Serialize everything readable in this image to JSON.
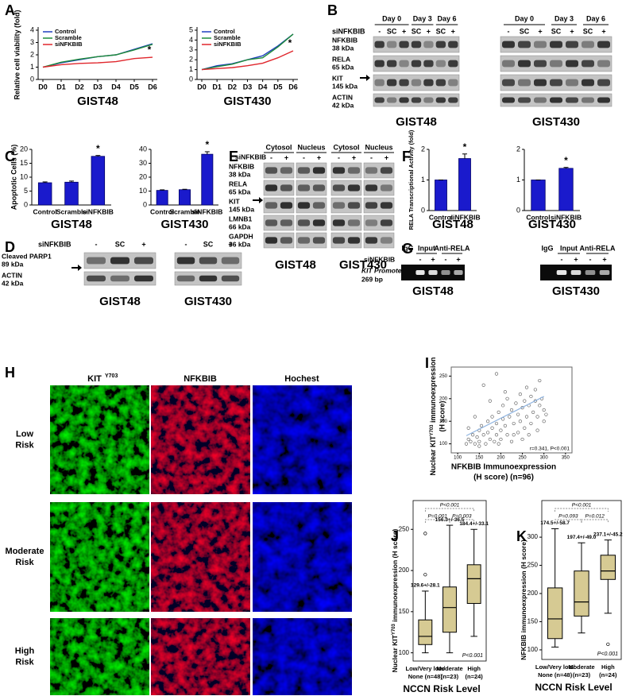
{
  "panel_letters": [
    "A",
    "B",
    "C",
    "D",
    "E",
    "F",
    "G",
    "H",
    "I",
    "J",
    "K"
  ],
  "blot_B": {
    "days": [
      "Day 0",
      "Day 3",
      "Day 6"
    ],
    "treatment": "siNFKBIB",
    "lanes": [
      "-",
      "SC",
      "+",
      "SC",
      "+",
      "SC",
      "+"
    ],
    "rows": [
      [
        "NFKBIB",
        "38 kDa"
      ],
      [
        "RELA",
        "65 kDa"
      ],
      [
        "KIT",
        "145 kDa"
      ],
      [
        "ACTIN",
        "42 kDa"
      ]
    ],
    "cells": [
      "GIST48",
      "GIST430"
    ]
  },
  "blot_D": {
    "treatment": "siNFKBIB",
    "lanes": [
      "-",
      "SC",
      "+"
    ],
    "rows": [
      [
        "Cleaved PARP1",
        "89 kDa"
      ],
      [
        "ACTIN",
        "42 kDa"
      ]
    ],
    "cells": [
      "GIST48",
      "GIST430"
    ]
  },
  "blot_E": {
    "fractions": [
      "Cytosol",
      "Nucleus"
    ],
    "treatment": "siNFKBIB",
    "lanes": [
      "-",
      "+"
    ],
    "rows": [
      [
        "NFKBIB",
        "38 kDa"
      ],
      [
        "RELA",
        "65 kDa"
      ],
      [
        "KIT",
        "145 kDa"
      ],
      [
        "LMNB1",
        "66 kDa"
      ],
      [
        "GAPDH",
        "36 kDa"
      ]
    ],
    "cells": [
      "GIST48",
      "GIST430"
    ]
  },
  "chip_G": {
    "groups": [
      "IgG",
      "Input",
      "Anti-RELA"
    ],
    "treatment": "siNFKBIB",
    "lanes": [
      "-",
      "+",
      "-",
      "+"
    ],
    "row": [
      "KIT Promoter",
      "269 bp"
    ],
    "cells": [
      "GIST48",
      "GIST430"
    ]
  },
  "images_H": {
    "channels": [
      "KIT",
      "NFKBIB",
      "Hochest"
    ],
    "kit_superscript": "Y703",
    "rows": [
      [
        "Low",
        "Risk"
      ],
      [
        "Moderate",
        "Risk"
      ],
      [
        "High",
        "Risk"
      ]
    ]
  },
  "chart_data": [
    {
      "type": "line",
      "x_label": "GIST48",
      "y_label": "Relative cell viability (fold)",
      "categories": [
        "D0",
        "D1",
        "D2",
        "D3",
        "D4",
        "D5",
        "D6"
      ],
      "ylim": [
        0,
        4
      ],
      "yticks": [
        0,
        1,
        2,
        3,
        4
      ],
      "annotation": "*",
      "series": [
        {
          "name": "Control",
          "color": "#1f3fbf",
          "values": [
            1,
            1.35,
            1.6,
            1.85,
            2.0,
            2.45,
            2.9
          ]
        },
        {
          "name": "Scramble",
          "color": "#1e8a3a",
          "values": [
            1,
            1.4,
            1.65,
            1.85,
            2.0,
            2.4,
            2.85
          ]
        },
        {
          "name": "siNFKBIB",
          "color": "#e0262c",
          "values": [
            1,
            1.2,
            1.3,
            1.35,
            1.45,
            1.7,
            1.8
          ]
        }
      ]
    },
    {
      "type": "line",
      "x_label": "GIST430",
      "categories": [
        "D0",
        "D1",
        "D2",
        "D3",
        "D4",
        "D5",
        "D6"
      ],
      "ylim": [
        0,
        5
      ],
      "yticks": [
        0,
        1,
        2,
        3,
        4,
        5
      ],
      "annotation": "*",
      "series": [
        {
          "name": "Control",
          "color": "#1f3fbf",
          "values": [
            1,
            1.4,
            1.6,
            2.0,
            2.4,
            3.4,
            4.6
          ]
        },
        {
          "name": "Scramble",
          "color": "#1e8a3a",
          "values": [
            1,
            1.3,
            1.55,
            2.0,
            2.2,
            3.3,
            4.6
          ]
        },
        {
          "name": "siNFKBIB",
          "color": "#e0262c",
          "values": [
            1,
            1.1,
            1.2,
            1.4,
            1.65,
            2.2,
            2.9
          ]
        }
      ]
    },
    {
      "type": "bar",
      "x_label": "GIST48",
      "y_label": "Apoptotic Cells (%)",
      "categories": [
        "Control",
        "Scramble",
        "siNFKBIB"
      ],
      "values": [
        8,
        8.2,
        17.5
      ],
      "errors": [
        0.3,
        0.4,
        0.3
      ],
      "color": "#1a1acc",
      "ylim": [
        0,
        20
      ],
      "yticks": [
        0,
        5,
        10,
        15,
        20
      ],
      "annotation": "*"
    },
    {
      "type": "bar",
      "x_label": "GIST430",
      "categories": [
        "Control",
        "Scramble",
        "siNFKBIB"
      ],
      "values": [
        10.5,
        11,
        36.5
      ],
      "errors": [
        0.4,
        0.3,
        1.8
      ],
      "color": "#1a1acc",
      "ylim": [
        0,
        40
      ],
      "yticks": [
        0,
        10,
        20,
        30,
        40
      ],
      "annotation": "*"
    },
    {
      "type": "bar",
      "x_label": "GIST48",
      "y_label": "RELA Transcriptional Activity (fold)",
      "categories": [
        "Control",
        "siNFKBIB"
      ],
      "values": [
        1,
        1.7
      ],
      "errors": [
        0,
        0.15
      ],
      "color": "#1a1acc",
      "ylim": [
        0,
        2
      ],
      "yticks": [
        0,
        1,
        2
      ],
      "annotation": "*"
    },
    {
      "type": "bar",
      "x_label": "GIST430",
      "categories": [
        "Control",
        "siNFKBIB"
      ],
      "values": [
        1,
        1.38
      ],
      "errors": [
        0,
        0.03
      ],
      "color": "#1a1acc",
      "ylim": [
        0,
        2
      ],
      "yticks": [
        0,
        1,
        2
      ],
      "annotation": "*"
    },
    {
      "type": "scatter",
      "x_label": [
        "NFKBIB Immunoexpression",
        "(H score) (n=96)"
      ],
      "y_label": [
        "Nuclear KIT",
        "Y703",
        " immunoexpression",
        "(H score)"
      ],
      "annotation": "r=0.341, P<0.001",
      "color": "#555555",
      "xlim": [
        85,
        365
      ],
      "xticks": [
        100,
        150,
        200,
        250,
        300,
        350
      ],
      "ylim": [
        80,
        270
      ],
      "yticks": [
        100,
        150,
        200,
        250
      ],
      "x": [
        120,
        125,
        130,
        135,
        140,
        145,
        150,
        150,
        155,
        160,
        165,
        170,
        170,
        175,
        180,
        180,
        185,
        190,
        190,
        195,
        200,
        200,
        205,
        205,
        210,
        215,
        215,
        220,
        225,
        225,
        230,
        235,
        240,
        240,
        245,
        245,
        250,
        255,
        255,
        260,
        260,
        265,
        270,
        270,
        275,
        280,
        280,
        285,
        290,
        290,
        295,
        300,
        300,
        160,
        175,
        190,
        210,
        230,
        250,
        140,
        125,
        265,
        285,
        305,
        150,
        195
      ],
      "y": [
        100,
        110,
        105,
        120,
        100,
        115,
        130,
        105,
        140,
        120,
        100,
        150,
        125,
        110,
        160,
        135,
        105,
        145,
        120,
        170,
        130,
        110,
        185,
        155,
        140,
        120,
        200,
        160,
        105,
        175,
        145,
        190,
        125,
        165,
        210,
        150,
        180,
        135,
        195,
        160,
        225,
        185,
        145,
        205,
        170,
        195,
        220,
        160,
        240,
        185,
        200,
        175,
        150,
        230,
        195,
        255,
        215,
        120,
        110,
        160,
        135,
        120,
        130,
        165,
        95,
        100
      ],
      "trend_line": {
        "x": [
          120,
          300
        ],
        "y": [
          118,
          205
        ]
      }
    },
    {
      "type": "box",
      "x_label": "NCCN Risk Level",
      "y_label": [
        "Nuclear KIT",
        "Y703",
        " immunoexpression (H score)"
      ],
      "color": "#d6ca93",
      "categories": [
        [
          "Low/Very low/",
          "None (n=48)"
        ],
        [
          "Moderate",
          "(n=23)"
        ],
        [
          "High",
          "(n=24)"
        ]
      ],
      "ylim": [
        90,
        285
      ],
      "yticks": [
        100,
        150,
        200,
        250
      ],
      "boxes": [
        {
          "whisker_low": 100,
          "q1": 110,
          "median": 120,
          "q3": 140,
          "whisker_high": 175,
          "outliers": [
            195,
            245
          ]
        },
        {
          "whisker_low": 100,
          "q1": 125,
          "median": 155,
          "q3": 180,
          "whisker_high": 255,
          "outliers": []
        },
        {
          "whisker_low": 120,
          "q1": 160,
          "median": 190,
          "q3": 207,
          "whisker_high": 250,
          "outliers": []
        }
      ],
      "means": [
        "129.6+/-28.1",
        "156.3+/-36.5",
        "184.4+/-33.1"
      ],
      "p_values": [
        "P<0.001",
        "P=0.001",
        "P=0.003"
      ],
      "p_overall": "P<0.001"
    },
    {
      "type": "box",
      "x_label": "NCCN Risk Level",
      "y_label": [
        "NFKBIB immunoexpression (H score)"
      ],
      "color": "#d6ca93",
      "categories": [
        [
          "Low/Very low/",
          "None (n=48)"
        ],
        [
          "Moderate",
          "(n=23)"
        ],
        [
          "High",
          "(n=24)"
        ]
      ],
      "ylim": [
        83,
        365
      ],
      "yticks": [
        100,
        150,
        200,
        250,
        300
      ],
      "boxes": [
        {
          "whisker_low": 105,
          "q1": 120,
          "median": 155,
          "q3": 210,
          "whisker_high": 315,
          "outliers": []
        },
        {
          "whisker_low": 130,
          "q1": 160,
          "median": 185,
          "q3": 240,
          "whisker_high": 290,
          "outliers": []
        },
        {
          "whisker_low": 165,
          "q1": 225,
          "median": 240,
          "q3": 268,
          "whisker_high": 295,
          "outliers": [
            110
          ]
        }
      ],
      "means": [
        "174.5+/-58.7",
        "197.4+/-49.0",
        "237.1+/-45.2"
      ],
      "p_values": [
        "P<0.001",
        "P=0.093",
        "P=0.012"
      ],
      "p_overall": "P<0.001"
    }
  ]
}
